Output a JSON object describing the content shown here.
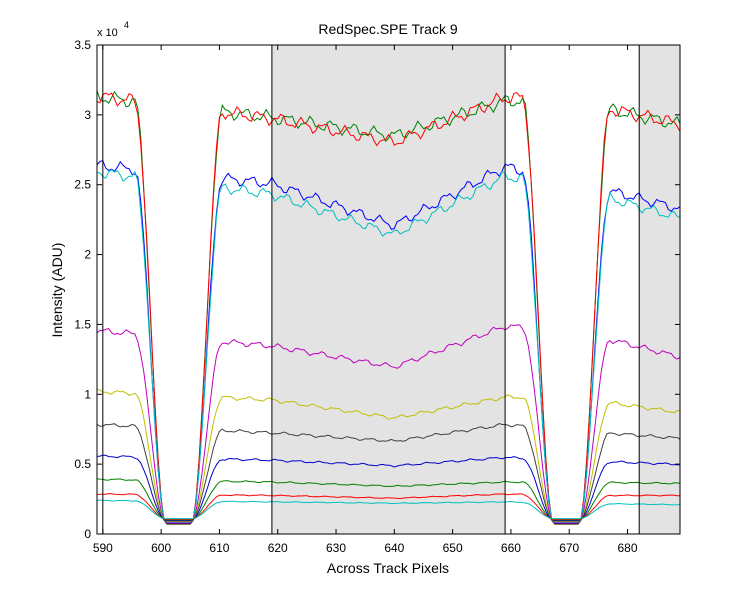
{
  "chart_data": {
    "type": "line",
    "title": "RedSpec.SPE   Track 9",
    "xlabel": "Across Track Pixels",
    "ylabel": "Intensity (ADU)",
    "exponent_label": "x 10",
    "exponent_power": "4",
    "xlim": [
      589,
      689
    ],
    "ylim": [
      0,
      3.5
    ],
    "y_scale": 10000,
    "x_ticks": [
      590,
      600,
      610,
      620,
      630,
      640,
      650,
      660,
      670,
      680
    ],
    "y_ticks": [
      0,
      0.5,
      1,
      1.5,
      2,
      2.5,
      3,
      3.5
    ],
    "y_tick_labels": [
      "0",
      "0.5",
      "1",
      "1.5",
      "2",
      "2.5",
      "3",
      "3.5"
    ],
    "shaded_regions": [
      [
        619,
        659
      ],
      [
        682,
        689
      ]
    ],
    "vertical_lines": [
      590,
      619,
      659,
      682
    ],
    "grid": false,
    "legend": "none",
    "series": [
      {
        "color": "#008000",
        "profile": [
          3.13,
          2.98,
          2.85,
          3.1,
          3.1,
          2.93
        ]
      },
      {
        "color": "#ff0000",
        "profile": [
          3.13,
          2.97,
          2.8,
          3.12,
          3.1,
          2.93
        ]
      },
      {
        "color": "#0000ff",
        "profile": [
          2.63,
          2.5,
          2.2,
          2.62,
          2.52,
          2.32
        ]
      },
      {
        "color": "#00bfbf",
        "profile": [
          2.58,
          2.42,
          2.13,
          2.55,
          2.47,
          2.25
        ]
      },
      {
        "color": "#bf00bf",
        "profile": [
          1.44,
          1.33,
          1.18,
          1.47,
          1.45,
          1.25
        ]
      },
      {
        "color": "#bfbf00",
        "profile": [
          1.0,
          0.94,
          0.81,
          0.96,
          0.96,
          0.85
        ]
      },
      {
        "color": "#404040",
        "profile": [
          0.76,
          0.7,
          0.64,
          0.76,
          0.72,
          0.66
        ]
      },
      {
        "color": "#0000cc",
        "profile": [
          0.53,
          0.5,
          0.46,
          0.52,
          0.5,
          0.47
        ]
      },
      {
        "color": "#008000",
        "profile": [
          0.36,
          0.34,
          0.31,
          0.34,
          0.34,
          0.33
        ]
      },
      {
        "color": "#ff0000",
        "profile": [
          0.25,
          0.24,
          0.22,
          0.25,
          0.24,
          0.24
        ]
      },
      {
        "color": "#00bfbf",
        "profile": [
          0.2,
          0.19,
          0.18,
          0.19,
          0.18,
          0.17
        ]
      }
    ],
    "profile_x": [
      589,
      619,
      640,
      659,
      670,
      689
    ],
    "dip_centers": [
      603,
      669.5
    ],
    "dip_floor": 0.07
  }
}
